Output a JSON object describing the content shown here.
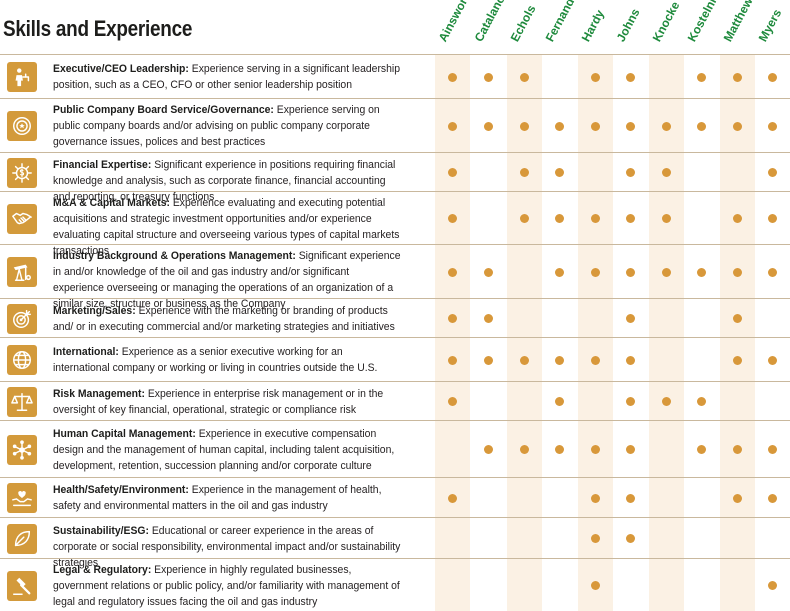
{
  "title": "Skills and Experience",
  "accent_color": "#d8983a",
  "directors": [
    "Ainsworth",
    "Catalano",
    "Echols",
    "Fernandez",
    "Hardy",
    "Johns",
    "Knocke",
    "Kostelnik",
    "Matthews",
    "Myers"
  ],
  "skills": [
    {
      "name": "Executive/CEO Leadership:",
      "description": " Experience serving in a significant leadership position, such as a CEO, CFO or other senior leadership position",
      "icon": "leader-icon",
      "has": [
        1,
        1,
        1,
        0,
        1,
        1,
        0,
        1,
        1,
        1
      ]
    },
    {
      "name": "Public Company Board Service/Governance:",
      "description": " Experience serving on public company boards and/or advising on public company corporate governance issues, polices and best practices",
      "icon": "governance-badge-icon",
      "has": [
        1,
        1,
        1,
        1,
        1,
        1,
        1,
        1,
        1,
        1
      ]
    },
    {
      "name": "Financial Expertise:",
      "description": " Significant experience in positions requiring financial knowledge and analysis, such as corporate finance, financial accounting and reporting, or treasury functions",
      "icon": "finance-gear-icon",
      "has": [
        1,
        0,
        1,
        1,
        0,
        1,
        1,
        0,
        0,
        1
      ]
    },
    {
      "name": "M&A & Capital Markets:",
      "description": " Experience evaluating and executing potential acquisitions and strategic investment opportunities and/or experience evaluating capital structure and overseeing various types of capital markets transactions",
      "icon": "handshake-icon",
      "has": [
        1,
        0,
        1,
        1,
        1,
        1,
        1,
        0,
        1,
        1
      ]
    },
    {
      "name": "Industry Background & Operations Management:",
      "description": " Significant experience in and/or knowledge of the oil and gas industry and/or significant experience overseeing or managing the operations of an organization of a similar size, structure or business as the Company",
      "icon": "oil-pump-icon",
      "has": [
        1,
        1,
        0,
        1,
        1,
        1,
        1,
        1,
        1,
        1
      ]
    },
    {
      "name": "Marketing/Sales:",
      "description": " Experience with the marketing or branding of products and/ or in executing commercial and/or marketing strategies and initiatives",
      "icon": "target-icon",
      "has": [
        1,
        1,
        0,
        0,
        0,
        1,
        0,
        0,
        1,
        0
      ]
    },
    {
      "name": "International:",
      "description": " Experience as a senior executive working for an international company or working or living in countries outside the U.S.",
      "icon": "globe-icon",
      "has": [
        1,
        1,
        1,
        1,
        1,
        1,
        0,
        0,
        1,
        1
      ]
    },
    {
      "name": "Risk Management:",
      "description": " Experience in enterprise risk management or in the oversight of key financial, operational, strategic or compliance risk",
      "icon": "scales-icon",
      "has": [
        1,
        0,
        0,
        1,
        0,
        1,
        1,
        1,
        0,
        0
      ]
    },
    {
      "name": "Human Capital Management:",
      "description": " Experience in executive compensation design and the management of human capital, including talent acquisition, development, retention, succession planning and/or corporate culture",
      "icon": "people-network-icon",
      "has": [
        0,
        1,
        1,
        1,
        1,
        1,
        0,
        1,
        1,
        1
      ]
    },
    {
      "name": "Health/Safety/Environment:",
      "description": " Experience in the management of health, safety and environmental matters in the oil and gas industry",
      "icon": "hands-heart-icon",
      "has": [
        1,
        0,
        0,
        0,
        1,
        1,
        0,
        0,
        1,
        1
      ]
    },
    {
      "name": "Sustainability/ESG:",
      "description": " Educational or career experience in the areas of corporate or social responsibility, environmental impact and/or sustainability strategies",
      "icon": "leaf-icon",
      "has": [
        0,
        0,
        0,
        0,
        1,
        1,
        0,
        0,
        0,
        0
      ]
    },
    {
      "name": "Legal & Regulatory:",
      "description": " Experience in highly regulated businesses, government relations or public policy, and/or familiarity with management of legal and regulatory issues facing the oil and gas industry",
      "icon": "gavel-icon",
      "has": [
        0,
        0,
        0,
        0,
        1,
        0,
        0,
        0,
        0,
        1
      ]
    }
  ]
}
